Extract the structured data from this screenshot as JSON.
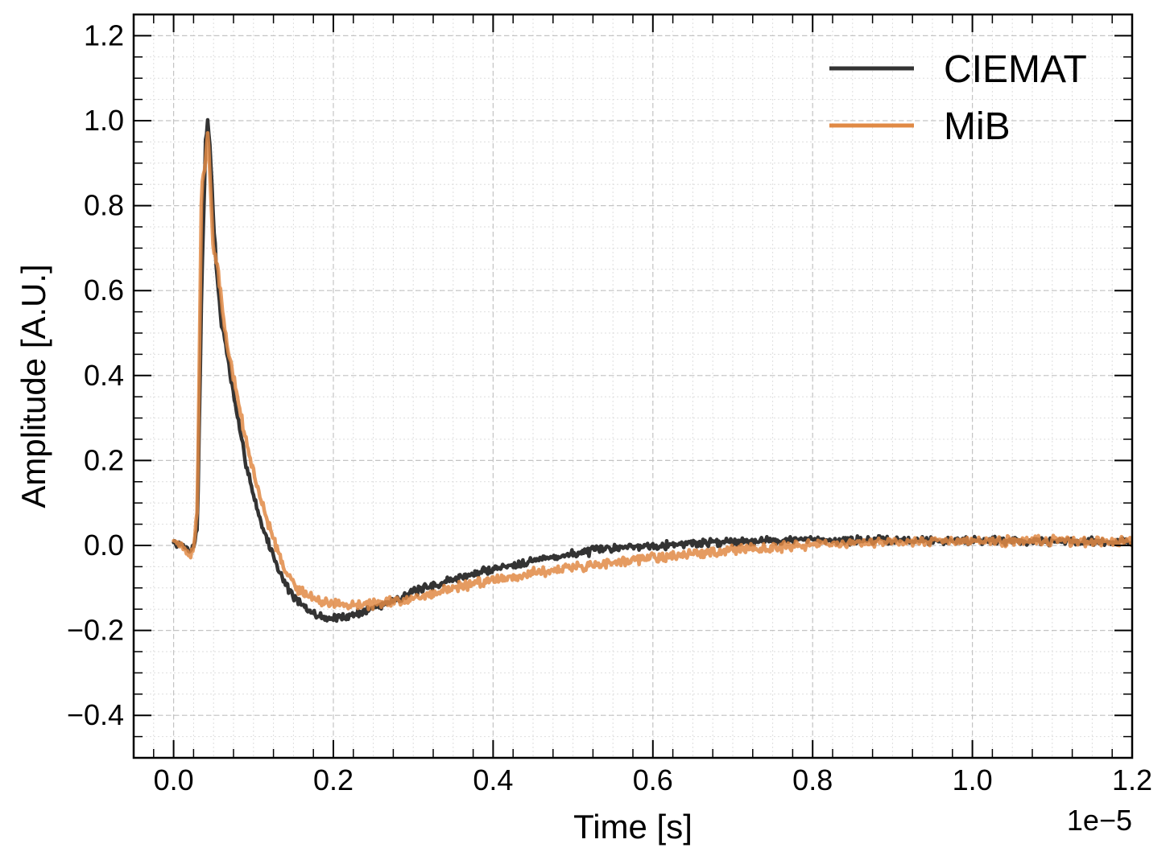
{
  "chart_data": {
    "type": "line",
    "title": "",
    "xlabel": "Time [s]",
    "ylabel": "Amplitude [A.U.]",
    "x_offset_label": "1e−5",
    "xlim": [
      -0.05,
      1.2
    ],
    "ylim": [
      -0.5,
      1.25
    ],
    "x_ticks": [
      0.0,
      0.2,
      0.4,
      0.6,
      0.8,
      1.0,
      1.2
    ],
    "x_tick_labels": [
      "0.0",
      "0.2",
      "0.4",
      "0.6",
      "0.8",
      "1.0",
      "1.2"
    ],
    "y_ticks": [
      -0.4,
      -0.2,
      0.0,
      0.2,
      0.4,
      0.6,
      0.8,
      1.0,
      1.2
    ],
    "y_tick_labels": [
      "−0.4",
      "−0.2",
      "0.0",
      "0.2",
      "0.4",
      "0.6",
      "0.8",
      "1.0",
      "1.2"
    ],
    "grid": true,
    "legend_position": "top-right",
    "series": [
      {
        "name": "CIEMAT",
        "color": "#333333",
        "noise": 0.012,
        "x": [
          0.0,
          0.01,
          0.02,
          0.025,
          0.03,
          0.035,
          0.04,
          0.043,
          0.046,
          0.05,
          0.055,
          0.06,
          0.065,
          0.07,
          0.08,
          0.09,
          0.1,
          0.11,
          0.12,
          0.13,
          0.14,
          0.15,
          0.16,
          0.17,
          0.18,
          0.19,
          0.2,
          0.21,
          0.22,
          0.24,
          0.26,
          0.28,
          0.3,
          0.35,
          0.4,
          0.45,
          0.5,
          0.55,
          0.6,
          0.65,
          0.7,
          0.75,
          0.8,
          0.85,
          0.9,
          0.95,
          1.0,
          1.05,
          1.1,
          1.15,
          1.2
        ],
        "y": [
          0.005,
          0.0,
          -0.01,
          -0.005,
          0.05,
          0.6,
          0.95,
          1.0,
          0.92,
          0.76,
          0.62,
          0.52,
          0.48,
          0.41,
          0.3,
          0.2,
          0.12,
          0.05,
          0.0,
          -0.05,
          -0.09,
          -0.12,
          -0.14,
          -0.155,
          -0.165,
          -0.17,
          -0.172,
          -0.17,
          -0.165,
          -0.155,
          -0.14,
          -0.125,
          -0.11,
          -0.08,
          -0.055,
          -0.035,
          -0.02,
          -0.005,
          0.0,
          0.005,
          0.01,
          0.012,
          0.013,
          0.012,
          0.012,
          0.012,
          0.012,
          0.011,
          0.01,
          0.01,
          0.008
        ]
      },
      {
        "name": "MiB",
        "color": "#e08a45",
        "noise": 0.014,
        "x": [
          0.0,
          0.01,
          0.02,
          0.025,
          0.03,
          0.035,
          0.04,
          0.043,
          0.046,
          0.05,
          0.055,
          0.06,
          0.065,
          0.07,
          0.08,
          0.09,
          0.1,
          0.11,
          0.12,
          0.13,
          0.14,
          0.15,
          0.16,
          0.17,
          0.18,
          0.2,
          0.22,
          0.24,
          0.26,
          0.28,
          0.3,
          0.35,
          0.4,
          0.45,
          0.5,
          0.55,
          0.6,
          0.65,
          0.7,
          0.75,
          0.8,
          0.85,
          0.9,
          0.95,
          1.0,
          1.05,
          1.1,
          1.15,
          1.2
        ],
        "y": [
          0.01,
          0.0,
          -0.02,
          -0.02,
          0.1,
          0.85,
          0.9,
          0.99,
          0.83,
          0.7,
          0.66,
          0.57,
          0.5,
          0.44,
          0.35,
          0.25,
          0.17,
          0.1,
          0.04,
          -0.01,
          -0.06,
          -0.09,
          -0.11,
          -0.12,
          -0.13,
          -0.14,
          -0.14,
          -0.14,
          -0.135,
          -0.13,
          -0.125,
          -0.1,
          -0.08,
          -0.065,
          -0.05,
          -0.04,
          -0.03,
          -0.02,
          -0.01,
          -0.005,
          0.0,
          0.005,
          0.008,
          0.01,
          0.01,
          0.01,
          0.012,
          0.01,
          0.01
        ]
      }
    ]
  }
}
